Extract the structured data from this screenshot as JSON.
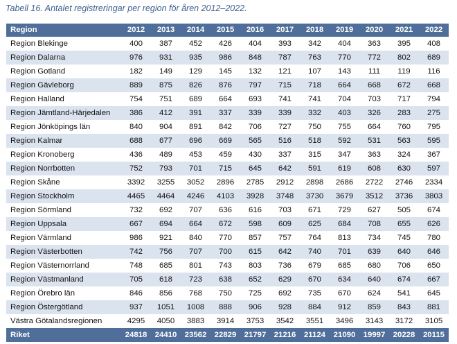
{
  "caption": "Tabell 16. Antalet registreringar per region för åren 2012–2022.",
  "header": {
    "region_label": "Region",
    "years": [
      "2012",
      "2013",
      "2014",
      "2015",
      "2016",
      "2017",
      "2018",
      "2019",
      "2020",
      "2021",
      "2022"
    ]
  },
  "rows": [
    {
      "name": "Region Blekinge",
      "values": [
        "400",
        "387",
        "452",
        "426",
        "404",
        "393",
        "342",
        "404",
        "363",
        "395",
        "408"
      ]
    },
    {
      "name": "Region Dalarna",
      "values": [
        "976",
        "931",
        "935",
        "986",
        "848",
        "787",
        "763",
        "770",
        "772",
        "802",
        "689"
      ]
    },
    {
      "name": "Region Gotland",
      "values": [
        "182",
        "149",
        "129",
        "145",
        "132",
        "121",
        "107",
        "143",
        "111",
        "119",
        "116"
      ]
    },
    {
      "name": "Region Gävleborg",
      "values": [
        "889",
        "875",
        "826",
        "876",
        "797",
        "715",
        "718",
        "664",
        "668",
        "672",
        "668"
      ]
    },
    {
      "name": "Region Halland",
      "values": [
        "754",
        "751",
        "689",
        "664",
        "693",
        "741",
        "741",
        "704",
        "703",
        "717",
        "794"
      ]
    },
    {
      "name": "Region Jämtland-Härjedalen",
      "values": [
        "386",
        "412",
        "391",
        "337",
        "339",
        "339",
        "332",
        "403",
        "326",
        "283",
        "275"
      ]
    },
    {
      "name": "Region Jönköpings län",
      "values": [
        "840",
        "904",
        "891",
        "842",
        "706",
        "727",
        "750",
        "755",
        "664",
        "760",
        "795"
      ]
    },
    {
      "name": "Region Kalmar",
      "values": [
        "688",
        "677",
        "696",
        "669",
        "565",
        "516",
        "518",
        "592",
        "531",
        "563",
        "595"
      ]
    },
    {
      "name": "Region Kronoberg",
      "values": [
        "436",
        "489",
        "453",
        "459",
        "430",
        "337",
        "315",
        "347",
        "363",
        "324",
        "367"
      ]
    },
    {
      "name": "Region Norrbotten",
      "values": [
        "752",
        "793",
        "701",
        "715",
        "645",
        "642",
        "591",
        "619",
        "608",
        "630",
        "597"
      ]
    },
    {
      "name": "Region Skåne",
      "values": [
        "3392",
        "3255",
        "3052",
        "2896",
        "2785",
        "2912",
        "2898",
        "2686",
        "2722",
        "2746",
        "2334"
      ]
    },
    {
      "name": "Region Stockholm",
      "values": [
        "4465",
        "4464",
        "4246",
        "4103",
        "3928",
        "3748",
        "3730",
        "3679",
        "3512",
        "3736",
        "3803"
      ]
    },
    {
      "name": "Region Sörmland",
      "values": [
        "732",
        "692",
        "707",
        "636",
        "616",
        "703",
        "671",
        "729",
        "627",
        "505",
        "674"
      ]
    },
    {
      "name": "Region Uppsala",
      "values": [
        "667",
        "694",
        "664",
        "672",
        "598",
        "609",
        "625",
        "684",
        "708",
        "655",
        "626"
      ]
    },
    {
      "name": "Region Värmland",
      "values": [
        "986",
        "921",
        "840",
        "770",
        "857",
        "757",
        "764",
        "813",
        "734",
        "745",
        "780"
      ]
    },
    {
      "name": "Region Västerbotten",
      "values": [
        "742",
        "756",
        "707",
        "700",
        "615",
        "642",
        "740",
        "701",
        "639",
        "640",
        "646"
      ]
    },
    {
      "name": "Region Västernorrland",
      "values": [
        "748",
        "685",
        "801",
        "743",
        "803",
        "736",
        "679",
        "685",
        "680",
        "706",
        "650"
      ]
    },
    {
      "name": "Region Västmanland",
      "values": [
        "705",
        "618",
        "723",
        "638",
        "652",
        "629",
        "670",
        "634",
        "640",
        "674",
        "667"
      ]
    },
    {
      "name": "Region Örebro län",
      "values": [
        "846",
        "856",
        "768",
        "750",
        "725",
        "692",
        "735",
        "670",
        "624",
        "541",
        "645"
      ]
    },
    {
      "name": "Region Östergötland",
      "values": [
        "937",
        "1051",
        "1008",
        "888",
        "906",
        "928",
        "884",
        "912",
        "859",
        "843",
        "881"
      ]
    },
    {
      "name": "Västra Götalandsregionen",
      "values": [
        "4295",
        "4050",
        "3883",
        "3914",
        "3753",
        "3542",
        "3551",
        "3496",
        "3143",
        "3172",
        "3105"
      ]
    }
  ],
  "total": {
    "name": "Riket",
    "values": [
      "24818",
      "24410",
      "23562",
      "22829",
      "21797",
      "21216",
      "21124",
      "21090",
      "19997",
      "20228",
      "20115"
    ]
  }
}
